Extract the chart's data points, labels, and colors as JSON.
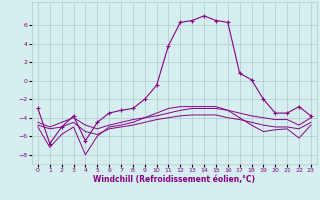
{
  "xlabel": "Windchill (Refroidissement éolien,°C)",
  "bg_color": "#d5eef0",
  "grid_color": "#b0c8cc",
  "line_color": "#880088",
  "marker": "+",
  "xlim": [
    -0.5,
    23.5
  ],
  "ylim": [
    -9,
    8.5
  ],
  "yticks": [
    -8,
    -6,
    -4,
    -2,
    0,
    2,
    4,
    6
  ],
  "xticks": [
    0,
    1,
    2,
    3,
    4,
    5,
    6,
    7,
    8,
    9,
    10,
    11,
    12,
    13,
    14,
    15,
    16,
    17,
    18,
    19,
    20,
    21,
    22,
    23
  ],
  "series1_x": [
    0,
    1,
    2,
    3,
    4,
    5,
    6,
    7,
    8,
    9,
    10,
    11,
    12,
    13,
    14,
    15,
    16,
    17,
    18,
    19,
    20,
    21,
    22,
    23
  ],
  "series1_y": [
    -3.0,
    -6.8,
    -5.0,
    -3.8,
    -6.5,
    -4.5,
    -3.5,
    -3.2,
    -3.0,
    -2.0,
    -0.5,
    3.8,
    6.3,
    6.5,
    7.0,
    6.5,
    6.3,
    0.8,
    0.1,
    -2.0,
    -3.5,
    -3.5,
    -2.8,
    -3.8
  ],
  "series2_x": [
    0,
    1,
    2,
    3,
    4,
    5,
    6,
    7,
    8,
    9,
    10,
    11,
    12,
    13,
    14,
    15,
    16,
    17,
    18,
    19,
    20,
    21,
    22,
    23
  ],
  "series2_y": [
    -4.5,
    -5.0,
    -4.5,
    -4.0,
    -4.8,
    -5.2,
    -4.8,
    -4.5,
    -4.2,
    -4.0,
    -3.8,
    -3.5,
    -3.2,
    -3.0,
    -3.0,
    -3.0,
    -3.2,
    -3.5,
    -3.8,
    -4.0,
    -4.2,
    -4.2,
    -4.8,
    -4.0
  ],
  "series3_x": [
    0,
    1,
    2,
    3,
    4,
    5,
    6,
    7,
    8,
    9,
    10,
    11,
    12,
    13,
    14,
    15,
    16,
    17,
    18,
    19,
    20,
    21,
    22,
    23
  ],
  "series3_y": [
    -4.8,
    -5.2,
    -5.0,
    -4.5,
    -5.5,
    -5.8,
    -5.2,
    -5.0,
    -4.8,
    -4.5,
    -4.2,
    -4.0,
    -3.8,
    -3.7,
    -3.7,
    -3.7,
    -4.0,
    -4.2,
    -4.5,
    -4.8,
    -5.0,
    -5.0,
    -5.2,
    -4.5
  ],
  "series4_x": [
    0,
    1,
    2,
    3,
    4,
    5,
    6,
    7,
    8,
    9,
    10,
    11,
    12,
    13,
    14,
    15,
    16,
    17,
    18,
    19,
    20,
    21,
    22,
    23
  ],
  "series4_y": [
    -5.0,
    -7.2,
    -5.8,
    -5.0,
    -8.0,
    -6.0,
    -5.0,
    -4.8,
    -4.5,
    -4.0,
    -3.5,
    -3.0,
    -2.8,
    -2.8,
    -2.8,
    -2.8,
    -3.2,
    -4.0,
    -4.8,
    -5.5,
    -5.3,
    -5.2,
    -6.2,
    -4.8
  ],
  "figsize": [
    3.2,
    2.0
  ],
  "dpi": 100
}
